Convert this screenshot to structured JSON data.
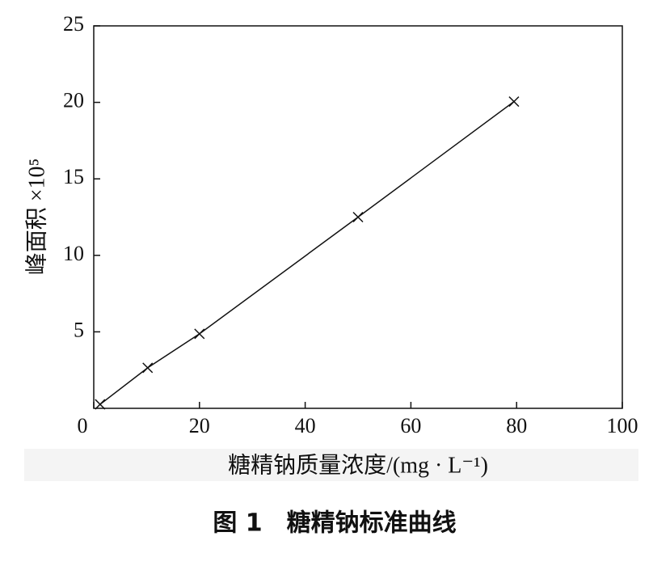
{
  "chart_data": {
    "type": "line",
    "y_label": "峰面积 ×10⁵",
    "x_label": "糖精钠质量浓度/(mg · L⁻¹)",
    "caption": "图 1　糖精钠标准曲线",
    "x": [
      1.2,
      10.2,
      20,
      50,
      79.5
    ],
    "series": [
      {
        "color": "#111111",
        "marker": "x",
        "values": [
          0.26,
          2.65,
          4.87,
          12.5,
          20.05
        ]
      }
    ],
    "xlim": [
      0,
      100
    ],
    "xticks": [
      0,
      20,
      40,
      60,
      80,
      100
    ],
    "ylim": [
      0,
      25
    ],
    "yticks": [
      5,
      10,
      15,
      20,
      25
    ]
  }
}
